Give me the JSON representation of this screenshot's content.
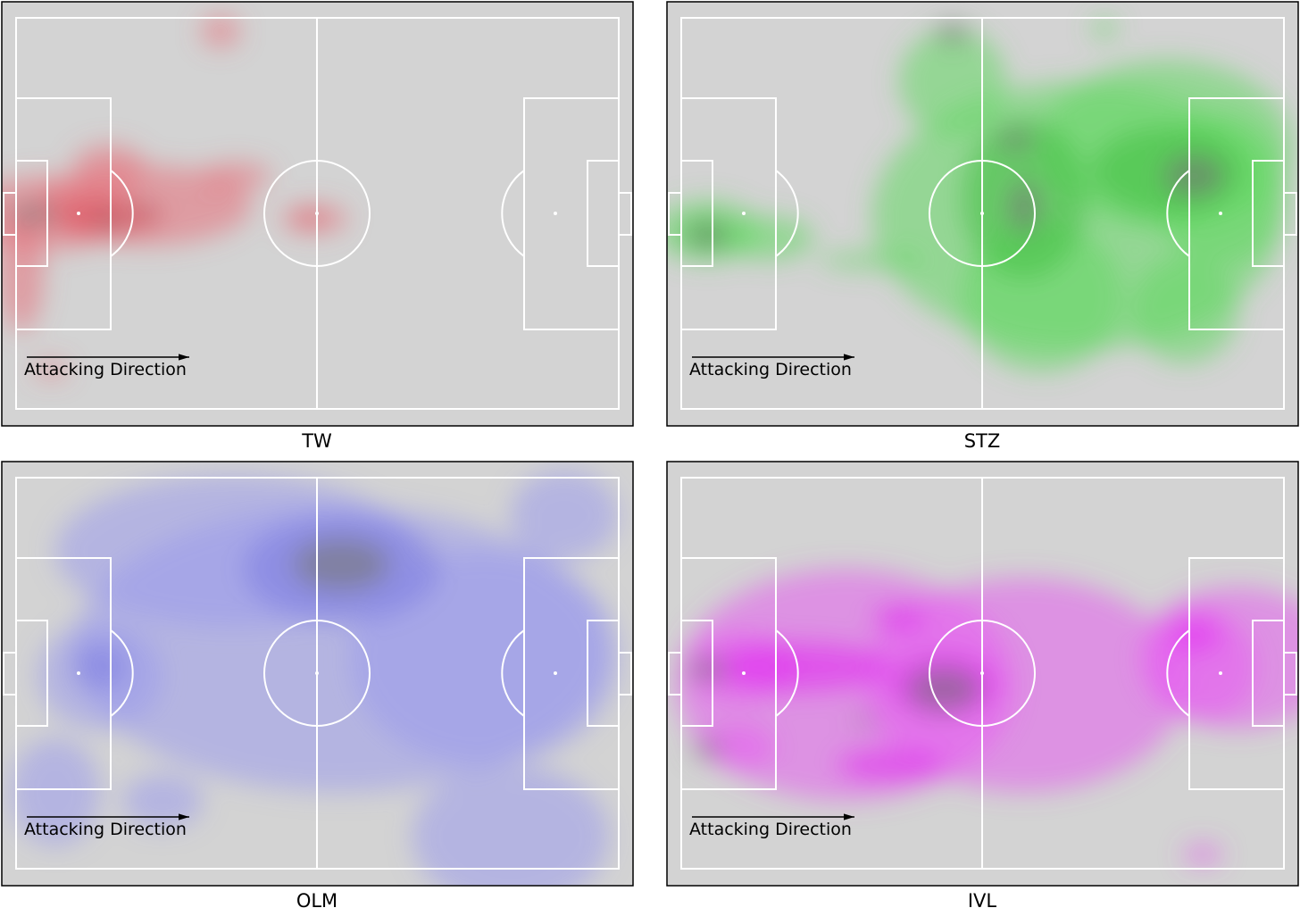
{
  "panels": [
    {
      "label": "TW",
      "annotation": "Attacking Direction"
    },
    {
      "label": "STZ",
      "annotation": "Attacking Direction"
    },
    {
      "label": "OLM",
      "annotation": "Attacking Direction"
    },
    {
      "label": "IVL",
      "annotation": "Attacking Direction"
    }
  ]
}
